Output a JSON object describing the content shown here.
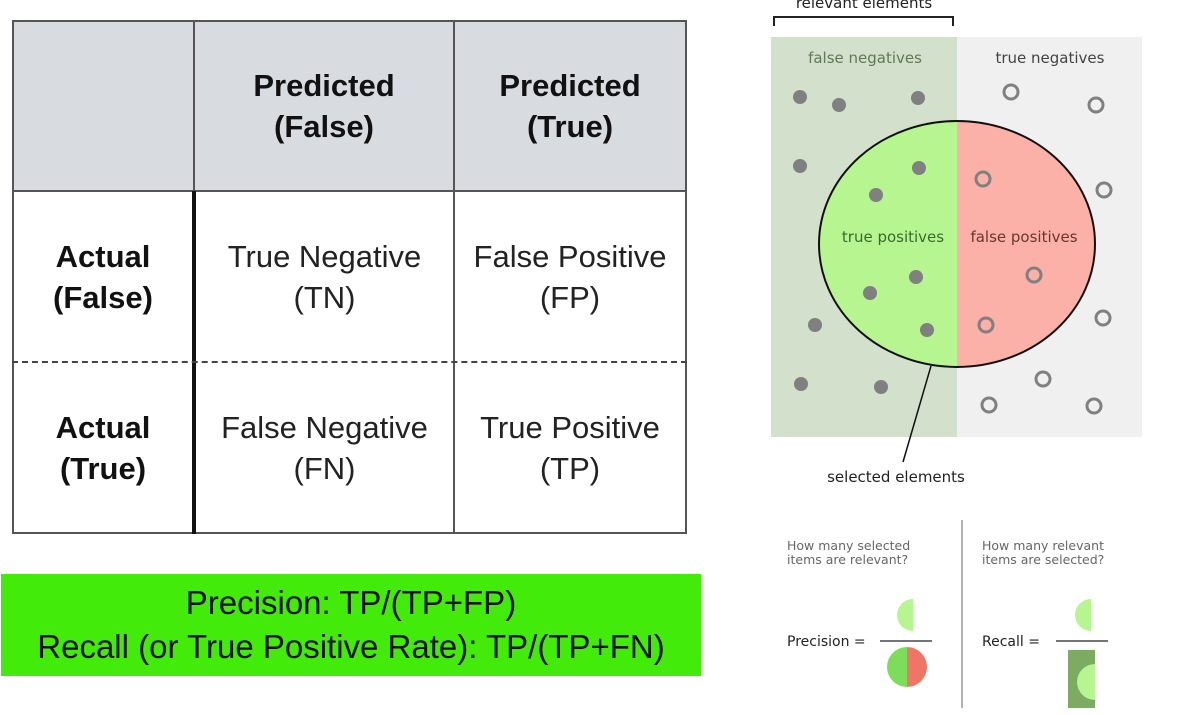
{
  "matrix": {
    "columns": [
      "Predicted\n(False)",
      "Predicted\n(True)"
    ],
    "col_lines": [
      [
        "Predicted",
        "(False)"
      ],
      [
        "Predicted",
        "(True)"
      ]
    ],
    "rows": [
      {
        "head": [
          "Actual",
          "(False)"
        ],
        "cells": [
          [
            "True Negative",
            "(TN)"
          ],
          [
            "False Positive",
            "(FP)"
          ]
        ]
      },
      {
        "head": [
          "Actual",
          "(True)"
        ],
        "cells": [
          [
            "False Negative",
            "(FN)"
          ],
          [
            "True Positive",
            "(TP)"
          ]
        ]
      }
    ]
  },
  "formula": {
    "precision": "Precision: TP/(TP+FP)",
    "recall": "Recall (or True Positive Rate): TP/(TP+FN)"
  },
  "venn": {
    "relevant_elements": "relevant elements",
    "false_negatives": "false negatives",
    "true_negatives": "true negatives",
    "true_positives": "true positives",
    "false_positives": "false positives",
    "selected_elements": "selected elements",
    "precision_question_1": "How many selected",
    "precision_question_2": "items are relevant?",
    "recall_question_1": "How many relevant",
    "recall_question_2": "items are selected?",
    "precision_label": "Precision =",
    "recall_label": "Recall =",
    "colors": {
      "relevant_bg": "#d3e0cc",
      "irrelevant_bg": "#f0f0f0",
      "tp_fill": "#b6f590",
      "fp_fill": "#fbb0a8",
      "precision_red": "#ef7566",
      "recall_green": "#7dab62",
      "dot_gray": "#808080"
    }
  }
}
